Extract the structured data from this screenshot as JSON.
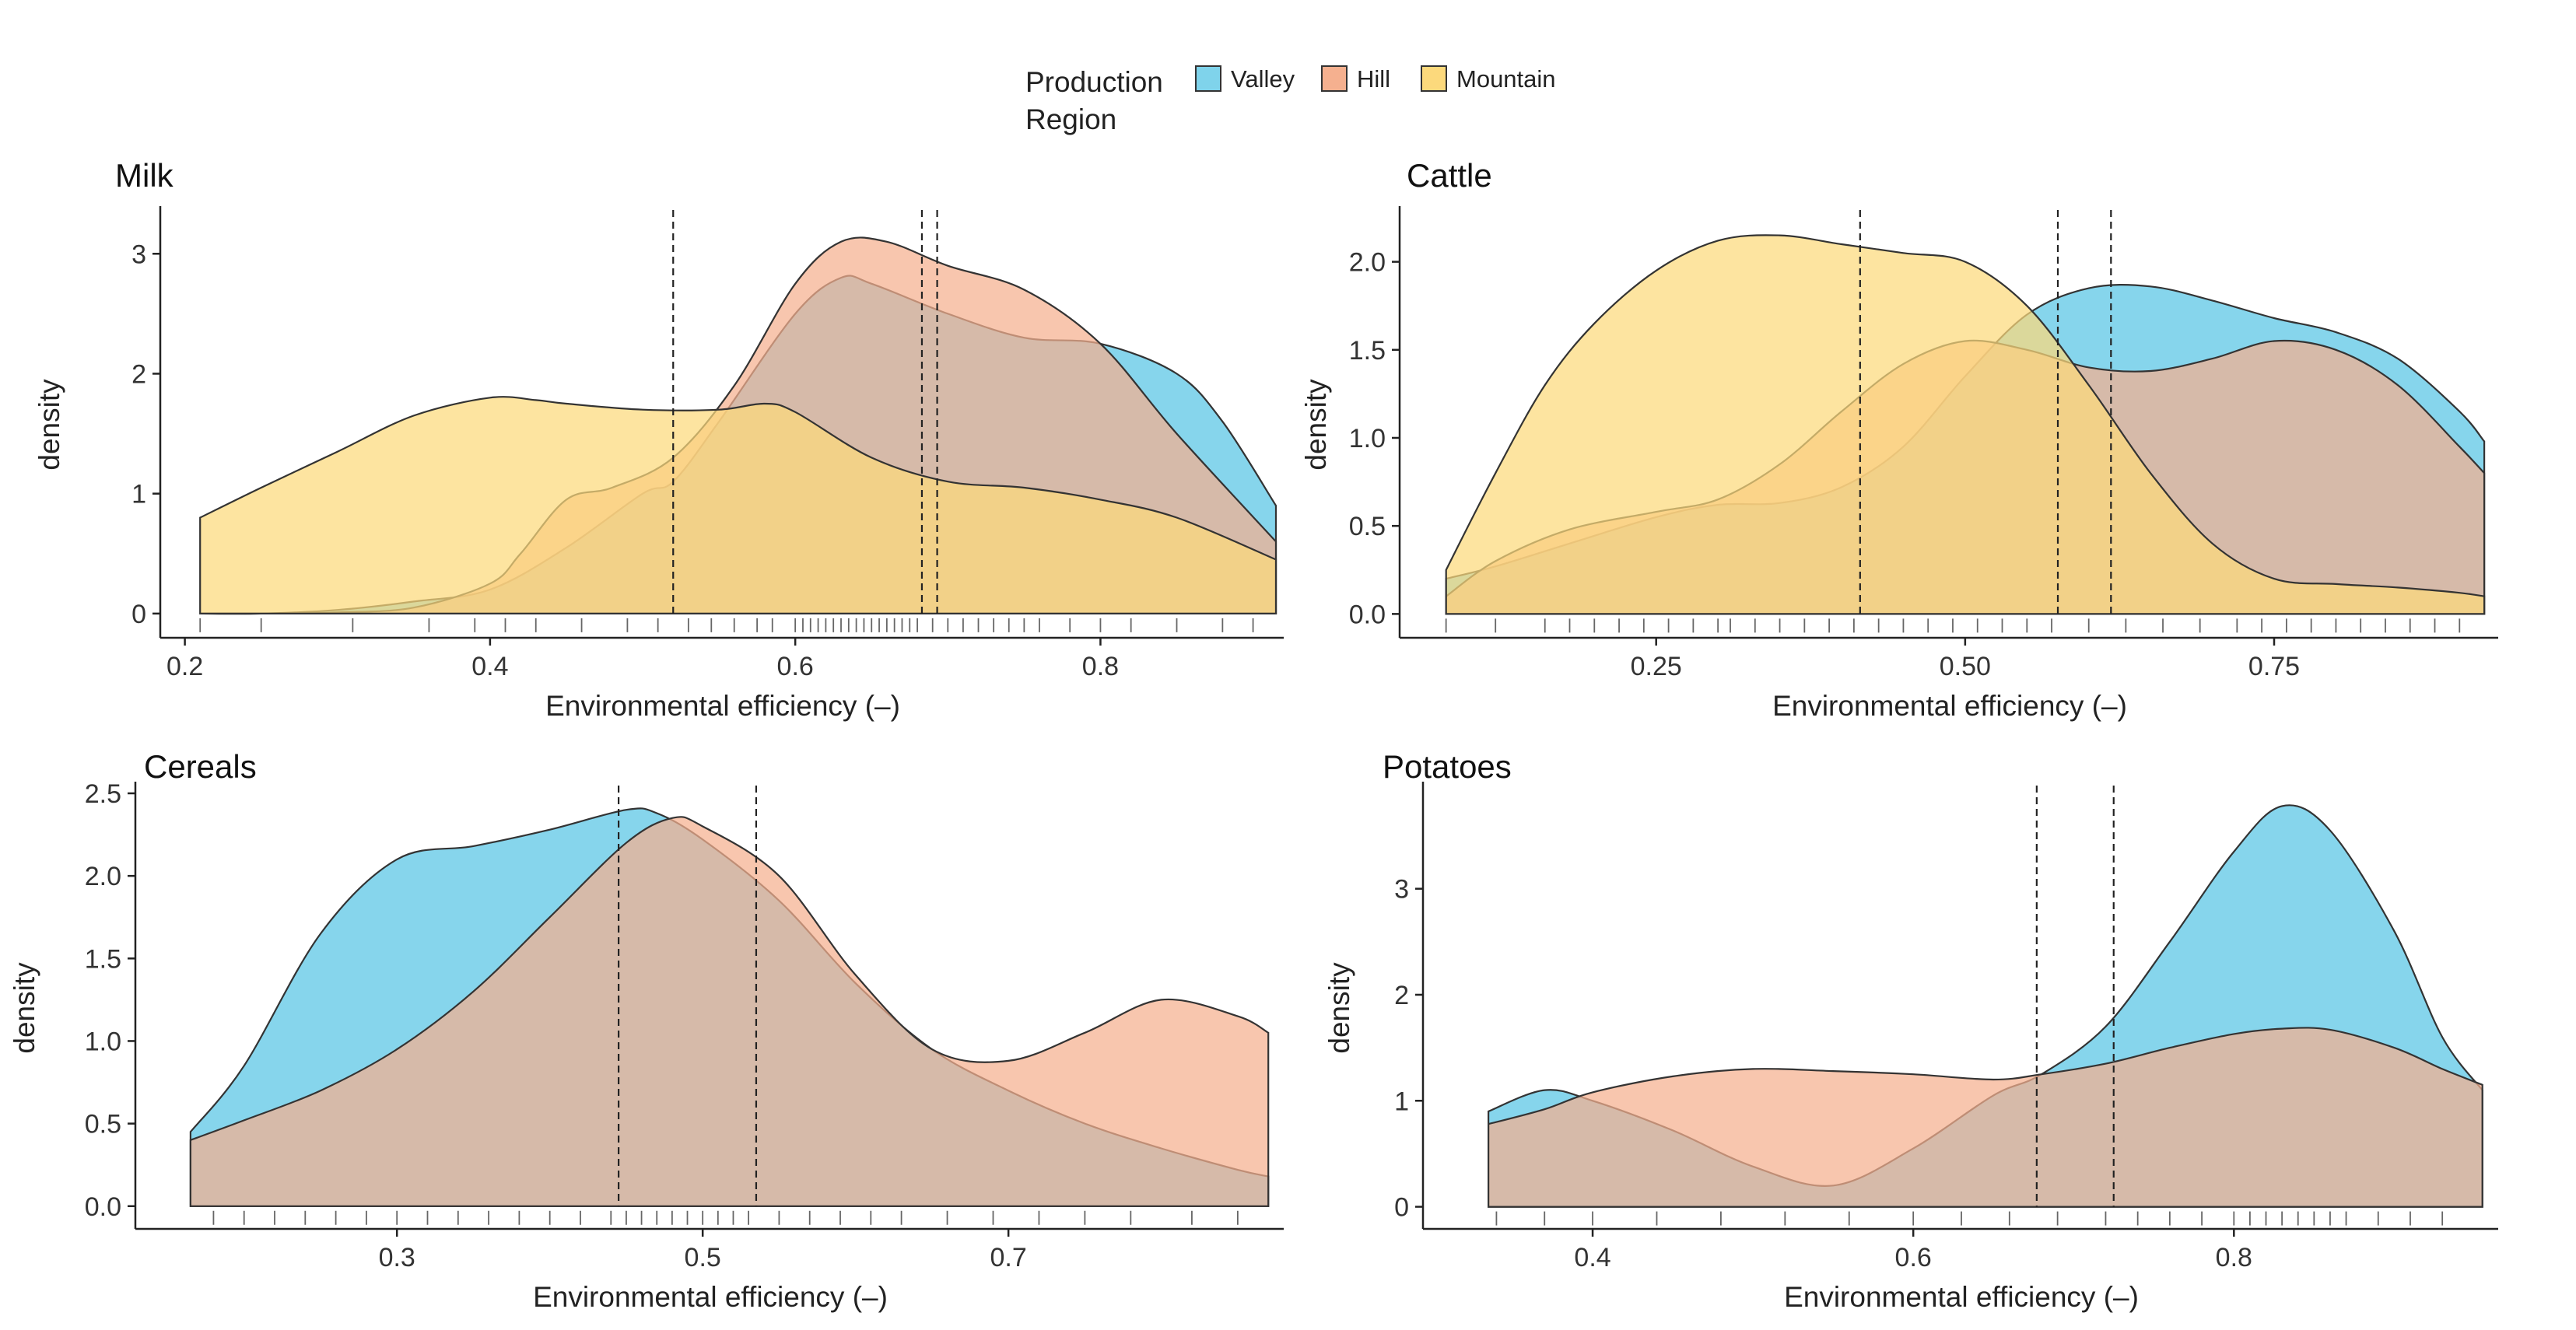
{
  "legend": {
    "title_line1": "Production",
    "title_line2": "Region",
    "items": [
      {
        "label": "Valley",
        "color": "#7fd3eb"
      },
      {
        "label": "Hill",
        "color": "#f5b08f"
      },
      {
        "label": "Mountain",
        "color": "#fcd97c"
      }
    ]
  },
  "chart_data": [
    {
      "type": "area",
      "title": "Milk",
      "xlabel": "Environmental efficiency (–)",
      "ylabel": "density",
      "xlim": [
        0.19,
        0.915
      ],
      "ylim": [
        -0.15,
        3.3
      ],
      "xticks": [
        0.2,
        0.4,
        0.6,
        0.8
      ],
      "xtick_labels": [
        "0.2",
        "0.4",
        "0.6",
        "0.8"
      ],
      "yticks": [
        0,
        1,
        2,
        3
      ],
      "ytick_labels": [
        "0",
        "1",
        "2",
        "3"
      ],
      "series": [
        {
          "name": "Valley",
          "color": "#7fd3eb",
          "x": [
            0.21,
            0.25,
            0.3,
            0.35,
            0.4,
            0.45,
            0.5,
            0.52,
            0.55,
            0.6,
            0.63,
            0.65,
            0.7,
            0.75,
            0.8,
            0.85,
            0.88,
            0.915
          ],
          "values": [
            0,
            0,
            0.03,
            0.1,
            0.2,
            0.55,
            1.0,
            1.1,
            1.6,
            2.5,
            2.8,
            2.75,
            2.5,
            2.3,
            2.25,
            2.0,
            1.6,
            0.9
          ]
        },
        {
          "name": "Hill",
          "color": "#f5b08f",
          "x": [
            0.21,
            0.25,
            0.3,
            0.35,
            0.4,
            0.42,
            0.45,
            0.48,
            0.52,
            0.56,
            0.6,
            0.63,
            0.66,
            0.7,
            0.75,
            0.8,
            0.85,
            0.915
          ],
          "values": [
            0,
            0,
            0.01,
            0.05,
            0.25,
            0.5,
            0.95,
            1.05,
            1.3,
            1.9,
            2.75,
            3.1,
            3.1,
            2.9,
            2.7,
            2.25,
            1.5,
            0.6
          ]
        },
        {
          "name": "Mountain",
          "color": "#fcd97c",
          "x": [
            0.21,
            0.25,
            0.3,
            0.35,
            0.4,
            0.43,
            0.45,
            0.5,
            0.55,
            0.58,
            0.6,
            0.65,
            0.7,
            0.75,
            0.8,
            0.85,
            0.915
          ],
          "values": [
            0.8,
            1.05,
            1.35,
            1.65,
            1.8,
            1.78,
            1.75,
            1.7,
            1.7,
            1.75,
            1.68,
            1.3,
            1.1,
            1.05,
            0.95,
            0.8,
            0.45
          ]
        }
      ],
      "vlines": [
        0.52,
        0.683,
        0.693
      ],
      "rugs": [
        0.21,
        0.25,
        0.31,
        0.36,
        0.39,
        0.41,
        0.43,
        0.46,
        0.49,
        0.51,
        0.53,
        0.545,
        0.56,
        0.575,
        0.585,
        0.6,
        0.605,
        0.61,
        0.615,
        0.62,
        0.625,
        0.63,
        0.635,
        0.64,
        0.645,
        0.65,
        0.655,
        0.66,
        0.665,
        0.67,
        0.675,
        0.68,
        0.69,
        0.7,
        0.71,
        0.72,
        0.73,
        0.74,
        0.75,
        0.76,
        0.78,
        0.8,
        0.82,
        0.85,
        0.88,
        0.9
      ]
    },
    {
      "type": "area",
      "title": "Cattle",
      "xlabel": "Environmental efficiency (–)",
      "ylabel": "density",
      "xlim": [
        0.05,
        0.925
      ],
      "ylim": [
        -0.1,
        2.25
      ],
      "xticks": [
        0.25,
        0.5,
        0.75
      ],
      "xtick_labels": [
        "0.25",
        "0.50",
        "0.75"
      ],
      "yticks": [
        0,
        0.5,
        1,
        1.5,
        2
      ],
      "ytick_labels": [
        "0.0",
        "0.5",
        "1.0",
        "1.5",
        "2.0"
      ],
      "series": [
        {
          "name": "Valley",
          "color": "#7fd3eb",
          "x": [
            0.08,
            0.12,
            0.18,
            0.25,
            0.3,
            0.35,
            0.4,
            0.45,
            0.5,
            0.55,
            0.6,
            0.65,
            0.7,
            0.75,
            0.8,
            0.85,
            0.9,
            0.92
          ],
          "values": [
            0.2,
            0.27,
            0.4,
            0.55,
            0.62,
            0.63,
            0.72,
            0.95,
            1.35,
            1.7,
            1.85,
            1.86,
            1.78,
            1.68,
            1.6,
            1.45,
            1.15,
            0.98
          ]
        },
        {
          "name": "Hill",
          "color": "#f5b08f",
          "x": [
            0.08,
            0.12,
            0.18,
            0.25,
            0.3,
            0.35,
            0.4,
            0.45,
            0.5,
            0.55,
            0.6,
            0.65,
            0.7,
            0.75,
            0.8,
            0.85,
            0.9,
            0.92
          ],
          "values": [
            0.1,
            0.3,
            0.48,
            0.58,
            0.65,
            0.85,
            1.15,
            1.42,
            1.55,
            1.5,
            1.4,
            1.38,
            1.45,
            1.55,
            1.5,
            1.3,
            0.95,
            0.8
          ]
        },
        {
          "name": "Mountain",
          "color": "#fcd97c",
          "x": [
            0.08,
            0.12,
            0.16,
            0.2,
            0.25,
            0.3,
            0.35,
            0.4,
            0.45,
            0.5,
            0.55,
            0.6,
            0.65,
            0.7,
            0.75,
            0.8,
            0.85,
            0.9,
            0.92
          ],
          "values": [
            0.25,
            0.8,
            1.3,
            1.65,
            1.95,
            2.12,
            2.15,
            2.1,
            2.05,
            2.0,
            1.75,
            1.3,
            0.8,
            0.4,
            0.2,
            0.17,
            0.15,
            0.12,
            0.1
          ]
        }
      ],
      "vlines": [
        0.415,
        0.575,
        0.618
      ],
      "rugs": [
        0.08,
        0.12,
        0.16,
        0.18,
        0.2,
        0.22,
        0.24,
        0.26,
        0.28,
        0.3,
        0.31,
        0.33,
        0.35,
        0.37,
        0.39,
        0.41,
        0.43,
        0.45,
        0.47,
        0.49,
        0.51,
        0.53,
        0.55,
        0.57,
        0.6,
        0.63,
        0.66,
        0.69,
        0.72,
        0.74,
        0.76,
        0.78,
        0.8,
        0.82,
        0.84,
        0.86,
        0.88,
        0.9
      ]
    },
    {
      "type": "area",
      "title": "Cereals",
      "xlabel": "Environmental efficiency (–)",
      "ylabel": "density",
      "xlim": [
        0.135,
        0.875
      ],
      "ylim": [
        -0.1,
        2.5
      ],
      "xticks": [
        0.3,
        0.5,
        0.7
      ],
      "xtick_labels": [
        "0.3",
        "0.5",
        "0.7"
      ],
      "yticks": [
        0,
        0.5,
        1,
        1.5,
        2,
        2.5
      ],
      "ytick_labels": [
        "0.0",
        "0.5",
        "1.0",
        "1.5",
        "2.0",
        "2.5"
      ],
      "series": [
        {
          "name": "Valley",
          "color": "#7fd3eb",
          "x": [
            0.165,
            0.2,
            0.25,
            0.3,
            0.35,
            0.4,
            0.45,
            0.47,
            0.5,
            0.55,
            0.6,
            0.65,
            0.7,
            0.75,
            0.8,
            0.85,
            0.87
          ],
          "values": [
            0.45,
            0.85,
            1.65,
            2.1,
            2.18,
            2.28,
            2.4,
            2.38,
            2.22,
            1.85,
            1.35,
            0.95,
            0.7,
            0.5,
            0.35,
            0.22,
            0.18
          ]
        },
        {
          "name": "Hill",
          "color": "#f5b08f",
          "x": [
            0.165,
            0.2,
            0.25,
            0.3,
            0.35,
            0.4,
            0.45,
            0.48,
            0.5,
            0.55,
            0.6,
            0.65,
            0.7,
            0.75,
            0.8,
            0.85,
            0.87
          ],
          "values": [
            0.4,
            0.52,
            0.7,
            0.95,
            1.3,
            1.75,
            2.2,
            2.35,
            2.3,
            2.0,
            1.4,
            0.95,
            0.88,
            1.05,
            1.25,
            1.15,
            1.05
          ]
        }
      ],
      "vlines": [
        0.445,
        0.535
      ],
      "rugs": [
        0.18,
        0.2,
        0.22,
        0.24,
        0.26,
        0.28,
        0.3,
        0.32,
        0.34,
        0.36,
        0.38,
        0.4,
        0.42,
        0.44,
        0.45,
        0.46,
        0.47,
        0.48,
        0.49,
        0.5,
        0.51,
        0.52,
        0.53,
        0.55,
        0.57,
        0.59,
        0.61,
        0.63,
        0.66,
        0.69,
        0.72,
        0.75,
        0.78,
        0.82,
        0.85
      ]
    },
    {
      "type": "area",
      "title": "Potatoes",
      "xlabel": "Environmental efficiency (–)",
      "ylabel": "density",
      "xlim": [
        0.3,
        0.96
      ],
      "ylim": [
        -0.15,
        3.9
      ],
      "xticks": [
        0.4,
        0.6,
        0.8
      ],
      "xtick_labels": [
        "0.4",
        "0.6",
        "0.8"
      ],
      "yticks": [
        0,
        1,
        2,
        3
      ],
      "ytick_labels": [
        "0",
        "1",
        "2",
        "3"
      ],
      "series": [
        {
          "name": "Valley",
          "color": "#7fd3eb",
          "x": [
            0.335,
            0.37,
            0.4,
            0.45,
            0.5,
            0.55,
            0.6,
            0.65,
            0.68,
            0.72,
            0.76,
            0.8,
            0.83,
            0.86,
            0.9,
            0.93,
            0.955
          ],
          "values": [
            0.9,
            1.1,
            1.0,
            0.72,
            0.38,
            0.2,
            0.55,
            1.05,
            1.25,
            1.7,
            2.5,
            3.35,
            3.78,
            3.55,
            2.6,
            1.6,
            1.1
          ]
        },
        {
          "name": "Hill",
          "color": "#f5b08f",
          "x": [
            0.335,
            0.37,
            0.4,
            0.45,
            0.5,
            0.55,
            0.6,
            0.65,
            0.68,
            0.72,
            0.76,
            0.8,
            0.83,
            0.86,
            0.9,
            0.93,
            0.955
          ],
          "values": [
            0.78,
            0.92,
            1.08,
            1.23,
            1.3,
            1.28,
            1.25,
            1.2,
            1.25,
            1.35,
            1.5,
            1.63,
            1.68,
            1.67,
            1.5,
            1.3,
            1.15
          ]
        }
      ],
      "vlines": [
        0.677,
        0.725
      ],
      "rugs": [
        0.34,
        0.37,
        0.4,
        0.44,
        0.48,
        0.52,
        0.56,
        0.6,
        0.63,
        0.66,
        0.69,
        0.72,
        0.74,
        0.76,
        0.78,
        0.8,
        0.81,
        0.82,
        0.83,
        0.84,
        0.85,
        0.86,
        0.87,
        0.89,
        0.91,
        0.93
      ]
    }
  ]
}
